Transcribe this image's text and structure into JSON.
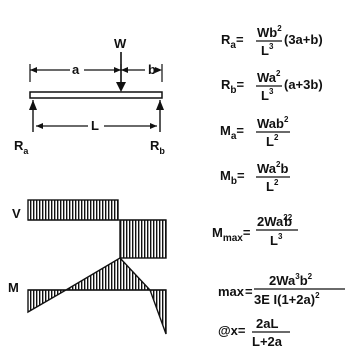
{
  "diagram": {
    "load_label": "W",
    "dim_a": "a",
    "dim_b": "b",
    "span": "L",
    "reaction_left": {
      "main": "R",
      "sub": "a"
    },
    "reaction_right": {
      "main": "R",
      "sub": "b"
    },
    "shear_label": "V",
    "moment_label": "M"
  },
  "formulas": {
    "ra": {
      "lhs": "R",
      "sub": "a",
      "num": "Wb",
      "num_sup": "2",
      "den": "L",
      "den_sup": "3",
      "tail": "(3a+b)"
    },
    "rb": {
      "lhs": "R",
      "sub": "b",
      "num": "Wa",
      "num_sup": "2",
      "den": "L",
      "den_sup": "3",
      "tail": "(a+3b)"
    },
    "ma": {
      "lhs": "M",
      "sub": "a",
      "num": "Wab",
      "num_sup": "2",
      "den": "L",
      "den_sup": "2"
    },
    "mb": {
      "lhs": "M",
      "sub": "b",
      "num": "Wa",
      "num_sup": "2",
      "num_tail": "b",
      "den": "L",
      "den_sup": "2"
    },
    "mmax": {
      "lhs": "M",
      "sub": "max",
      "num": "2Wa",
      "num_sup": "2",
      "num_tail": "b",
      "num_sup2": "2",
      "den": "L",
      "den_sup": "3"
    },
    "defl": {
      "lhs": "max",
      "num": "2Wa",
      "num_sup": "3",
      "num_tail": "b",
      "num_sup2": "2",
      "den": "3E I(1+2a)",
      "den_sup": "2"
    },
    "at_x": {
      "lhs": "@x=",
      "num": "2aL",
      "den": "L+2a"
    }
  }
}
